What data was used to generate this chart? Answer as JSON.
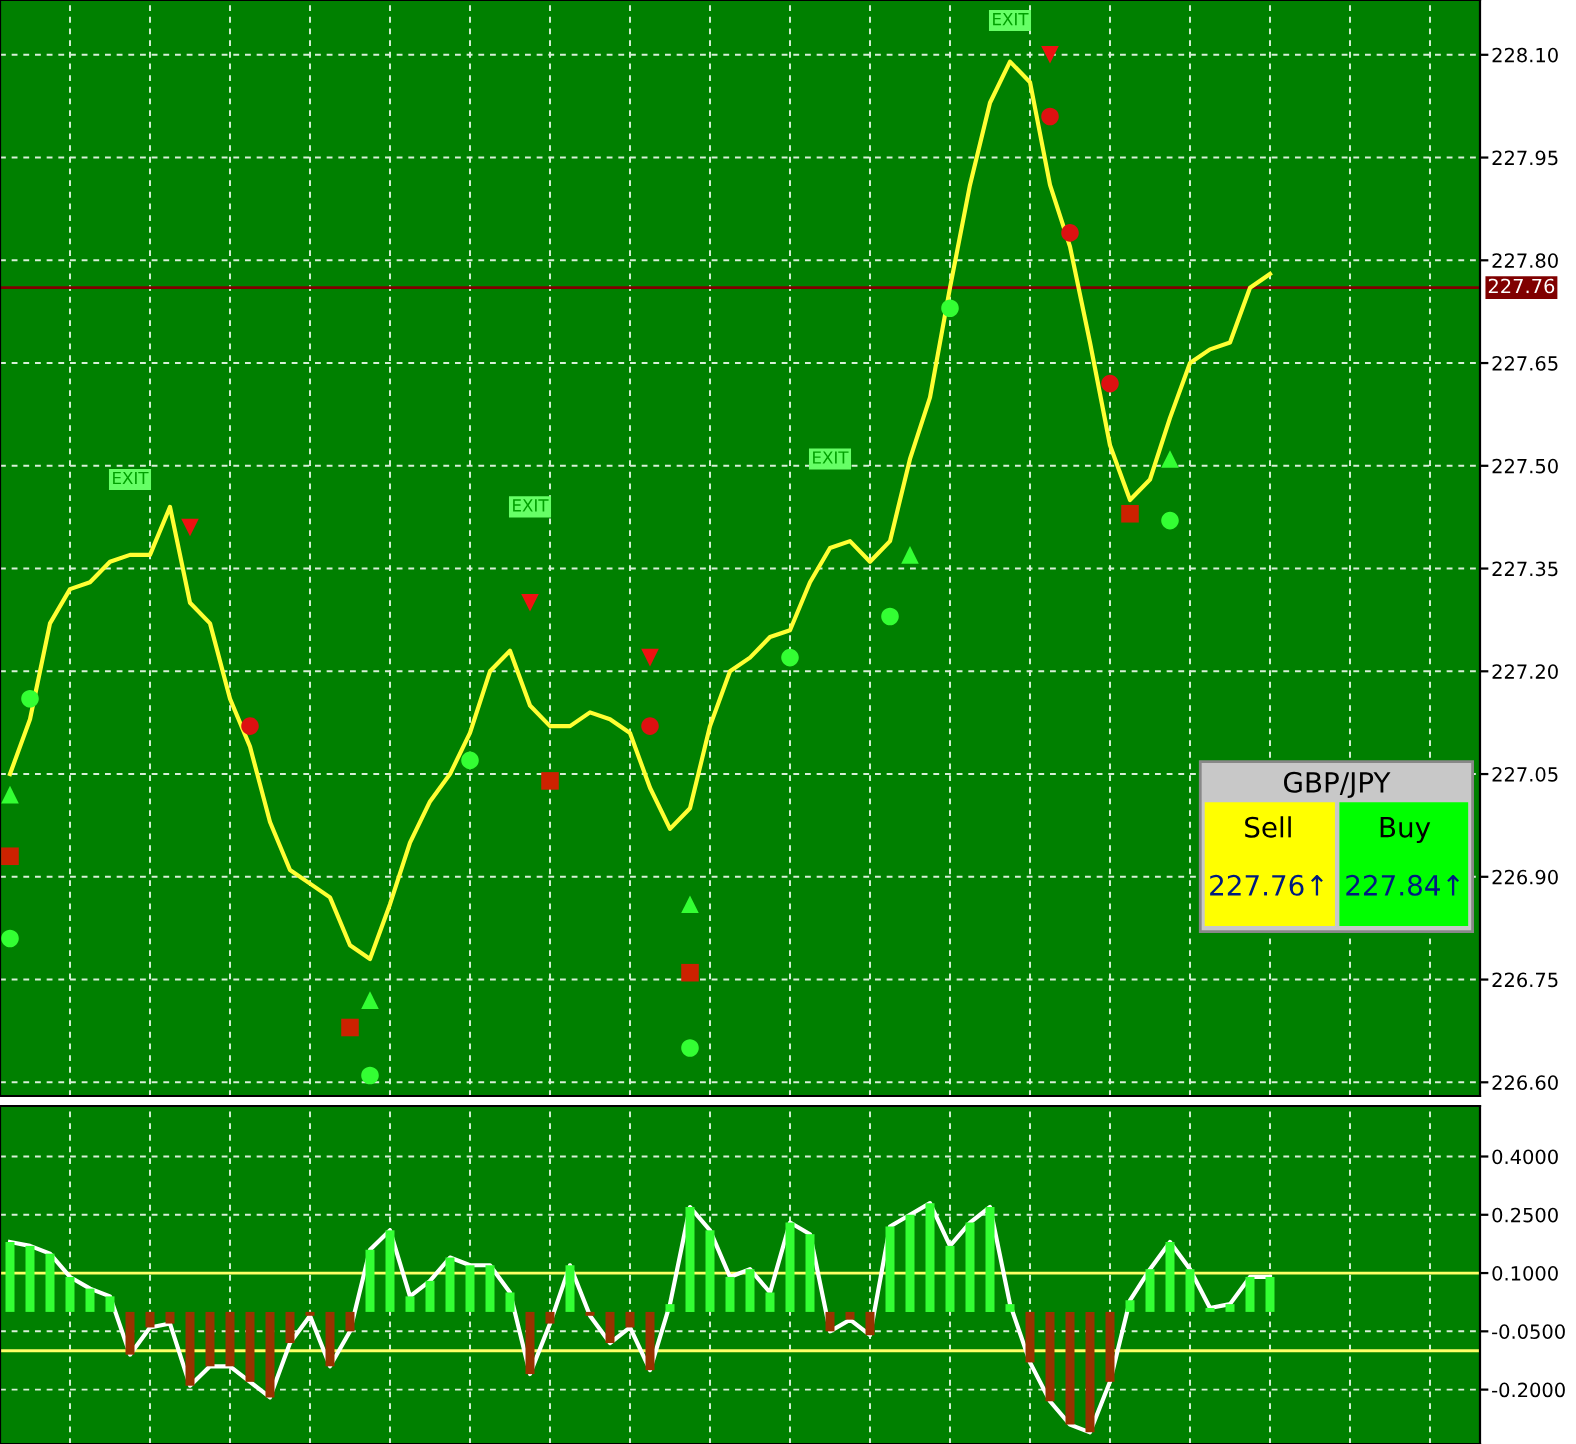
{
  "chart_data": [
    {
      "type": "line",
      "tick_labels": "y",
      "grid": true,
      "categories": [
        null,
        null,
        null,
        null,
        null,
        null,
        null,
        null,
        null,
        null,
        null,
        null,
        null,
        null,
        null,
        null,
        null,
        null,
        null,
        null,
        null,
        null,
        null,
        null,
        null,
        null,
        null,
        null,
        null,
        null,
        null,
        null,
        null,
        null,
        null,
        null,
        null,
        null,
        null,
        null,
        null,
        null,
        null,
        null,
        null,
        null,
        null,
        null,
        null,
        null,
        null,
        null,
        null,
        null,
        null,
        null,
        null,
        null,
        null,
        null,
        null,
        null,
        null,
        null,
        null,
        null,
        null,
        null,
        null,
        null,
        null,
        null,
        null,
        null
      ],
      "ylim": [
        226.58,
        228.18
      ],
      "yticks": [
        {
          "value": 226.6,
          "label": "226.60"
        },
        {
          "value": 226.75,
          "label": "226.75"
        },
        {
          "value": 226.9,
          "label": "226.90"
        },
        {
          "value": 227.05,
          "label": "227.05"
        },
        {
          "value": 227.2,
          "label": "227.20"
        },
        {
          "value": 227.35,
          "label": "227.35"
        },
        {
          "value": 227.5,
          "label": "227.50"
        },
        {
          "value": 227.65,
          "label": "227.65"
        },
        {
          "value": 227.8,
          "label": "227.80"
        },
        {
          "value": 227.95,
          "label": "227.95"
        },
        {
          "value": 228.1,
          "label": "228.10"
        }
      ],
      "series": [
        {
          "color": "#ffff33",
          "values": [
            227.05,
            227.13,
            227.27,
            227.32,
            227.33,
            227.36,
            227.37,
            227.37,
            227.44,
            227.3,
            227.27,
            227.16,
            227.09,
            226.98,
            226.91,
            226.89,
            226.87,
            226.8,
            226.78,
            226.86,
            226.95,
            227.01,
            227.05,
            227.11,
            227.2,
            227.23,
            227.15,
            227.12,
            227.12,
            227.14,
            227.13,
            227.11,
            227.03,
            226.97,
            227.0,
            227.12,
            227.2,
            227.22,
            227.25,
            227.26,
            227.33,
            227.38,
            227.39,
            227.36,
            227.39,
            227.51,
            227.6,
            227.76,
            227.91,
            228.03,
            228.09,
            228.06,
            227.91,
            227.82,
            227.68,
            227.53,
            227.45,
            227.48,
            227.57,
            227.65,
            227.67,
            227.68,
            227.76,
            227.78,
            null,
            null,
            null,
            null,
            null,
            null,
            null,
            null,
            null,
            null
          ]
        },
        {
          "type": "scatter",
          "marker": "circle",
          "color": "#33ff33",
          "values": [
            226.81,
            227.16,
            null,
            null,
            null,
            null,
            null,
            null,
            null,
            null,
            null,
            null,
            null,
            null,
            null,
            null,
            null,
            null,
            226.61,
            null,
            null,
            null,
            null,
            227.07,
            null,
            null,
            null,
            null,
            null,
            null,
            null,
            null,
            null,
            null,
            226.65,
            null,
            null,
            null,
            null,
            227.22,
            null,
            null,
            null,
            null,
            227.28,
            null,
            null,
            227.73,
            null,
            null,
            null,
            null,
            null,
            null,
            null,
            null,
            null,
            null,
            227.42,
            null,
            null,
            null,
            null,
            null,
            null,
            null,
            null,
            null,
            null,
            null,
            null,
            null,
            null,
            null
          ]
        },
        {
          "type": "scatter",
          "marker": "circle",
          "color": "#dd1111",
          "values": [
            null,
            null,
            null,
            null,
            null,
            null,
            null,
            null,
            null,
            null,
            null,
            null,
            227.12,
            null,
            null,
            null,
            null,
            null,
            null,
            null,
            null,
            null,
            null,
            null,
            null,
            null,
            null,
            null,
            null,
            null,
            null,
            null,
            227.12,
            null,
            null,
            null,
            null,
            null,
            null,
            null,
            null,
            null,
            null,
            null,
            null,
            null,
            null,
            null,
            null,
            null,
            null,
            null,
            228.01,
            227.84,
            null,
            227.62,
            null,
            null,
            null,
            null,
            null,
            null,
            null,
            null,
            null,
            null,
            null,
            null,
            null,
            null,
            null,
            null,
            null,
            null
          ]
        },
        {
          "type": "scatter",
          "marker": "triangle",
          "color": "#33ff33",
          "values": [
            227.02,
            null,
            null,
            null,
            null,
            null,
            null,
            null,
            null,
            null,
            null,
            null,
            null,
            null,
            null,
            null,
            null,
            null,
            226.72,
            null,
            null,
            null,
            null,
            null,
            null,
            null,
            null,
            null,
            null,
            null,
            null,
            null,
            null,
            null,
            226.86,
            null,
            null,
            null,
            null,
            null,
            null,
            null,
            null,
            null,
            null,
            227.37,
            null,
            null,
            null,
            null,
            null,
            null,
            null,
            null,
            null,
            null,
            null,
            null,
            227.51,
            null,
            null,
            null,
            null,
            null,
            null,
            null,
            null,
            null,
            null,
            null,
            null,
            null,
            null,
            null
          ]
        },
        {
          "type": "scatter",
          "marker": "triangle_down",
          "color": "#ee1111",
          "values": [
            null,
            null,
            null,
            null,
            null,
            null,
            null,
            null,
            null,
            227.41,
            null,
            null,
            null,
            null,
            null,
            null,
            null,
            null,
            null,
            null,
            null,
            null,
            null,
            null,
            null,
            null,
            227.3,
            null,
            null,
            null,
            null,
            null,
            227.22,
            null,
            null,
            null,
            null,
            null,
            null,
            null,
            null,
            null,
            null,
            null,
            null,
            null,
            null,
            null,
            null,
            null,
            null,
            null,
            228.1,
            null,
            null,
            null,
            null,
            null,
            null,
            null,
            null,
            null,
            null,
            null,
            null,
            null,
            null,
            null,
            null,
            null,
            null,
            null,
            null,
            null
          ]
        },
        {
          "type": "scatter",
          "marker": "square",
          "color": "#cc2200",
          "values": [
            226.93,
            null,
            null,
            null,
            null,
            null,
            null,
            null,
            null,
            null,
            null,
            null,
            null,
            null,
            null,
            null,
            null,
            226.68,
            null,
            null,
            null,
            null,
            null,
            null,
            null,
            null,
            null,
            227.04,
            null,
            null,
            null,
            null,
            null,
            null,
            226.76,
            null,
            null,
            null,
            null,
            null,
            null,
            null,
            null,
            null,
            null,
            null,
            null,
            null,
            null,
            null,
            null,
            null,
            null,
            null,
            null,
            null,
            227.43,
            null,
            null,
            null,
            null,
            null,
            null,
            null,
            null,
            null,
            null,
            null,
            null,
            null,
            null,
            null,
            null,
            null
          ]
        },
        {
          "type": "scatter",
          "marker": "square",
          "color": "#66ff66",
          "values": [
            null,
            null,
            null,
            null,
            null,
            null,
            227.48,
            null,
            null,
            null,
            null,
            null,
            null,
            null,
            null,
            null,
            null,
            null,
            null,
            null,
            null,
            null,
            null,
            null,
            null,
            null,
            227.44,
            null,
            null,
            null,
            null,
            null,
            null,
            null,
            null,
            null,
            null,
            null,
            null,
            null,
            null,
            227.51,
            null,
            null,
            null,
            null,
            null,
            null,
            null,
            null,
            228.15,
            null,
            null,
            null,
            null,
            null,
            null,
            null,
            null,
            null,
            null,
            null,
            null,
            null,
            null,
            null,
            null,
            null,
            null,
            null,
            null,
            null,
            null,
            null
          ],
          "value_labels": [
            null,
            null,
            null,
            null,
            null,
            null,
            "EXIT",
            null,
            null,
            null,
            null,
            null,
            null,
            null,
            null,
            null,
            null,
            null,
            null,
            null,
            null,
            null,
            null,
            null,
            null,
            null,
            "EXIT",
            null,
            null,
            null,
            null,
            null,
            null,
            null,
            null,
            null,
            null,
            null,
            null,
            null,
            null,
            "EXIT",
            null,
            null,
            null,
            null,
            null,
            null,
            null,
            null,
            "EXIT",
            null,
            null,
            null,
            null,
            null,
            null,
            null,
            null,
            null,
            null,
            null,
            null,
            null,
            null,
            null,
            null,
            null,
            null,
            null,
            null,
            null,
            null,
            null
          ]
        }
      ],
      "ref_lines": [
        {
          "axis": "y",
          "value": 227.76,
          "label": "227.76",
          "color": "#800000"
        }
      ],
      "annotations": [
        "GBP/JPY",
        "Sell",
        "Buy",
        "227.76↑",
        "227.84↑"
      ]
    },
    {
      "type": "bar",
      "tick_labels": "y",
      "grid": true,
      "categories": [
        null,
        null,
        null,
        null,
        null,
        null,
        null,
        null,
        null,
        null,
        null,
        null,
        null,
        null,
        null,
        null,
        null,
        null,
        null,
        null,
        null,
        null,
        null,
        null,
        null,
        null,
        null,
        null,
        null,
        null,
        null,
        null,
        null,
        null,
        null,
        null,
        null,
        null,
        null,
        null,
        null,
        null,
        null,
        null,
        null,
        null,
        null,
        null,
        null,
        null,
        null,
        null,
        null,
        null,
        null,
        null,
        null,
        null,
        null,
        null,
        null,
        null,
        null,
        null,
        null,
        null,
        null,
        null,
        null,
        null,
        null,
        null,
        null,
        null
      ],
      "ylim": [
        -0.34,
        0.53
      ],
      "yticks": [
        {
          "value": -0.2,
          "label": "-0.2000"
        },
        {
          "value": -0.05,
          "label": "-0.0500"
        },
        {
          "value": 0.1,
          "label": "0.1000"
        },
        {
          "value": 0.25,
          "label": "0.2500"
        },
        {
          "value": 0.4,
          "label": "0.4000"
        }
      ],
      "series": [
        {
          "values": [
            0.18,
            0.17,
            0.15,
            0.09,
            0.06,
            0.04,
            -0.11,
            -0.04,
            -0.03,
            -0.19,
            -0.14,
            -0.14,
            -0.18,
            -0.22,
            -0.08,
            -0.01,
            -0.14,
            -0.05,
            0.16,
            0.21,
            0.04,
            0.08,
            0.14,
            0.12,
            0.12,
            0.05,
            -0.16,
            -0.03,
            0.12,
            -0.01,
            -0.08,
            -0.04,
            -0.15,
            0.02,
            0.27,
            0.21,
            0.09,
            0.11,
            0.05,
            0.23,
            0.2,
            -0.05,
            -0.02,
            -0.06,
            0.22,
            0.25,
            0.28,
            0.17,
            0.23,
            0.27,
            0.02,
            -0.13,
            -0.23,
            -0.29,
            -0.31,
            -0.18,
            0.03,
            0.11,
            0.18,
            0.11,
            0.01,
            0.02,
            0.09,
            0.09,
            null,
            null,
            null,
            null,
            null,
            null,
            null,
            null,
            null,
            null
          ],
          "colors": [
            "#33ff33",
            "#33ff33",
            "#33ff33",
            "#33ff33",
            "#33ff33",
            "#33ff33",
            "#993300",
            "#993300",
            "#993300",
            "#993300",
            "#993300",
            "#993300",
            "#993300",
            "#993300",
            "#993300",
            "#993300",
            "#993300",
            "#993300",
            "#33ff33",
            "#33ff33",
            "#33ff33",
            "#33ff33",
            "#33ff33",
            "#33ff33",
            "#33ff33",
            "#33ff33",
            "#993300",
            "#993300",
            "#33ff33",
            "#993300",
            "#993300",
            "#993300",
            "#993300",
            "#33ff33",
            "#33ff33",
            "#33ff33",
            "#33ff33",
            "#33ff33",
            "#33ff33",
            "#33ff33",
            "#33ff33",
            "#993300",
            "#993300",
            "#993300",
            "#33ff33",
            "#33ff33",
            "#33ff33",
            "#33ff33",
            "#33ff33",
            "#33ff33",
            "#33ff33",
            "#993300",
            "#993300",
            "#993300",
            "#993300",
            "#993300",
            "#33ff33",
            "#33ff33",
            "#33ff33",
            "#33ff33",
            "#33ff33",
            "#33ff33",
            "#33ff33",
            "#33ff33",
            null,
            null,
            null,
            null,
            null,
            null,
            null,
            null,
            null,
            null
          ]
        },
        {
          "type": "line",
          "color": "#ffffff",
          "values": [
            0.18,
            0.17,
            0.15,
            0.09,
            0.06,
            0.04,
            -0.11,
            -0.04,
            -0.03,
            -0.19,
            -0.14,
            -0.14,
            -0.18,
            -0.22,
            -0.08,
            -0.01,
            -0.14,
            -0.05,
            0.16,
            0.21,
            0.04,
            0.08,
            0.14,
            0.12,
            0.12,
            0.05,
            -0.16,
            -0.03,
            0.12,
            -0.01,
            -0.08,
            -0.04,
            -0.15,
            0.02,
            0.27,
            0.21,
            0.09,
            0.11,
            0.05,
            0.23,
            0.2,
            -0.05,
            -0.02,
            -0.06,
            0.22,
            0.25,
            0.28,
            0.17,
            0.23,
            0.27,
            0.02,
            -0.13,
            -0.23,
            -0.29,
            -0.31,
            -0.18,
            0.03,
            0.11,
            0.18,
            0.11,
            0.01,
            0.02,
            0.09,
            0.09,
            null,
            null,
            null,
            null,
            null,
            null,
            null,
            null,
            null,
            null
          ]
        }
      ],
      "ref_lines": [
        {
          "axis": "y",
          "value": 0.1,
          "color": "#ffff66"
        },
        {
          "axis": "y",
          "value": -0.1,
          "color": "#ffff66"
        }
      ]
    }
  ]
}
